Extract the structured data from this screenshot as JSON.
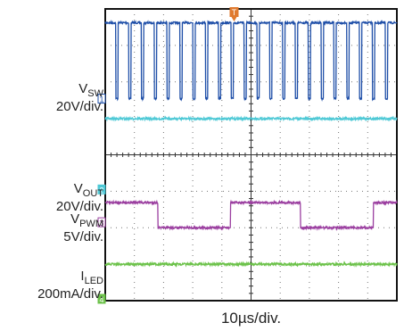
{
  "chart_data": {
    "type": "line",
    "title": "",
    "x_scale_label": "10µs/div.",
    "divisions": {
      "x": 10,
      "y": 8
    },
    "grid": true,
    "trigger_marker": "T",
    "series": [
      {
        "channel": "1",
        "name": "VSW",
        "name_main": "V",
        "name_sub": "SW",
        "scale": "20V/div.",
        "color": "#1f4fa8",
        "kind": "square_wave",
        "period_div": 0.44,
        "duty": 0.82,
        "high_div": 7.62,
        "low_div": 5.54
      },
      {
        "channel": "2",
        "name": "VOUT",
        "name_main": "V",
        "name_sub": "OUT",
        "scale": "20V/div.",
        "color": "#4ec9d6",
        "kind": "dc",
        "level_div": 4.99
      },
      {
        "channel": "3",
        "name": "VPWM",
        "name_main": "V",
        "name_sub": "PWM",
        "scale": "5V/div.",
        "color": "#9b3fa0",
        "kind": "pwm",
        "high_div": 2.69,
        "low_div": 2.0,
        "edges_div": [
          1.8,
          4.3,
          6.7,
          9.2
        ]
      },
      {
        "channel": "4",
        "name": "ILED",
        "name_main": "I",
        "name_sub": "LED",
        "scale": "200mA/div.",
        "color": "#6cc24a",
        "kind": "dc",
        "level_div": 1.0
      }
    ]
  }
}
